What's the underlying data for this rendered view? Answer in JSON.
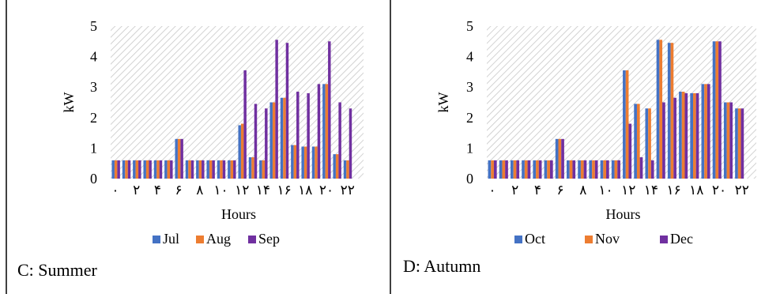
{
  "panels": [
    {
      "caption": "C: Summer",
      "chart_data": {
        "type": "bar",
        "xlabel": "Hours",
        "ylabel": "kW",
        "ylim": [
          0,
          5
        ],
        "yticks": [
          "0",
          "1",
          "2",
          "3",
          "4",
          "5"
        ],
        "categories": [
          "0",
          "1",
          "2",
          "3",
          "4",
          "5",
          "6",
          "7",
          "8",
          "9",
          "10",
          "11",
          "12",
          "13",
          "14",
          "15",
          "16",
          "17",
          "18",
          "19",
          "20",
          "21",
          "22",
          "23"
        ],
        "tick_labels": [
          "۰",
          "۲",
          "۴",
          "۶",
          "۸",
          "۱۰",
          "۱۲",
          "۱۴",
          "۱۶",
          "۱۸",
          "۲۰",
          "۲۲"
        ],
        "legend_position": "bottom",
        "grid": "diagonal hatch",
        "series": [
          {
            "name": "Jul",
            "color": "#4472c4",
            "values": [
              0.6,
              0.6,
              0.6,
              0.6,
              0.6,
              0.6,
              1.3,
              0.6,
              0.6,
              0.6,
              0.6,
              0.6,
              1.75,
              0.7,
              0.6,
              2.5,
              2.65,
              1.1,
              1.05,
              1.05,
              3.1,
              0.8,
              0.6,
              0
            ]
          },
          {
            "name": "Aug",
            "color": "#ed7d31",
            "values": [
              0.6,
              0.6,
              0.6,
              0.6,
              0.6,
              0.6,
              1.3,
              0.6,
              0.6,
              0.6,
              0.6,
              0.6,
              1.8,
              0.7,
              0.6,
              2.5,
              2.65,
              1.1,
              1.05,
              1.05,
              3.1,
              0.8,
              0.6,
              0
            ]
          },
          {
            "name": "Sep",
            "color": "#7030a0",
            "values": [
              0.6,
              0.6,
              0.6,
              0.6,
              0.6,
              0.6,
              1.3,
              0.6,
              0.6,
              0.6,
              0.6,
              0.6,
              3.55,
              2.45,
              2.3,
              4.55,
              4.45,
              2.85,
              2.8,
              3.1,
              4.5,
              2.5,
              2.3,
              0
            ]
          }
        ]
      }
    },
    {
      "caption": "D: Autumn",
      "chart_data": {
        "type": "bar",
        "xlabel": "Hours",
        "ylabel": "kW",
        "ylim": [
          0,
          5
        ],
        "yticks": [
          "0",
          "1",
          "2",
          "3",
          "4",
          "5"
        ],
        "categories": [
          "0",
          "1",
          "2",
          "3",
          "4",
          "5",
          "6",
          "7",
          "8",
          "9",
          "10",
          "11",
          "12",
          "13",
          "14",
          "15",
          "16",
          "17",
          "18",
          "19",
          "20",
          "21",
          "22",
          "23"
        ],
        "tick_labels": [
          "۰",
          "۲",
          "۴",
          "۶",
          "۸",
          "۱۰",
          "۱۲",
          "۱۴",
          "۱۶",
          "۱۸",
          "۲۰",
          "۲۲"
        ],
        "legend_position": "bottom",
        "grid": "diagonal hatch",
        "series": [
          {
            "name": "Oct",
            "color": "#4472c4",
            "values": [
              0.6,
              0.6,
              0.6,
              0.6,
              0.6,
              0.6,
              1.3,
              0.6,
              0.6,
              0.6,
              0.6,
              0.6,
              3.55,
              2.45,
              2.3,
              4.55,
              4.45,
              2.85,
              2.8,
              3.1,
              4.5,
              2.5,
              2.3,
              0
            ]
          },
          {
            "name": "Nov",
            "color": "#ed7d31",
            "values": [
              0.6,
              0.6,
              0.6,
              0.6,
              0.6,
              0.6,
              1.3,
              0.6,
              0.6,
              0.6,
              0.6,
              0.6,
              3.55,
              2.45,
              2.3,
              4.55,
              4.45,
              2.85,
              2.8,
              3.1,
              4.5,
              2.5,
              2.3,
              0
            ]
          },
          {
            "name": "Dec",
            "color": "#7030a0",
            "values": [
              0.6,
              0.6,
              0.6,
              0.6,
              0.6,
              0.6,
              1.3,
              0.6,
              0.6,
              0.6,
              0.6,
              0.6,
              1.8,
              0.7,
              0.6,
              2.5,
              2.65,
              2.8,
              2.8,
              3.1,
              4.5,
              2.5,
              2.3,
              0
            ]
          }
        ]
      }
    }
  ]
}
